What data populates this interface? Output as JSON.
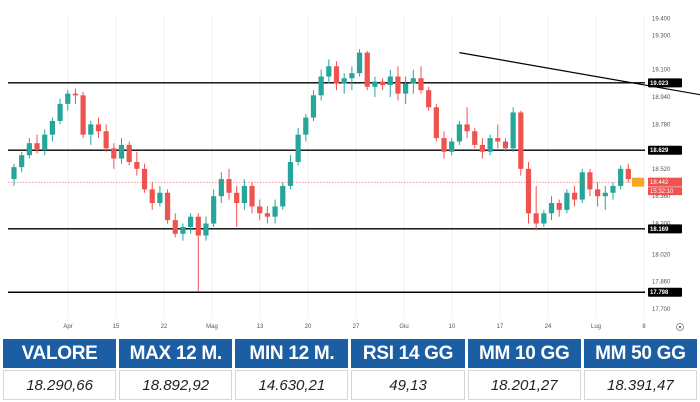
{
  "chart_data": {
    "type": "candlestick",
    "title": "",
    "xlabel": "",
    "ylabel": "",
    "ylim": [
      17.7,
      19.42
    ],
    "y_ticks": [
      "19.400",
      "19.300",
      "19.100",
      "18.940",
      "18.780",
      "18.629",
      "18.520",
      "18.360",
      "18.200",
      "18.020",
      "17.860",
      "17.700"
    ],
    "x_ticks": [
      "Apr",
      "15",
      "22",
      "Mag",
      "13",
      "20",
      "27",
      "Giu",
      "10",
      "17",
      "24",
      "Lug",
      "8"
    ],
    "levels": [
      {
        "value": 19.023,
        "label": "19.023"
      },
      {
        "value": 18.629,
        "label": "18.629"
      },
      {
        "value": 18.169,
        "label": "18.169"
      },
      {
        "value": 17.798,
        "label": "17.798"
      }
    ],
    "current_price": {
      "value": 18.442,
      "label": "18.442",
      "secondary": "18.442",
      "time": "15:32:10"
    },
    "trendline": {
      "start": {
        "index": 58,
        "value": 19.2
      },
      "end": {
        "index": 114,
        "value": 18.76
      }
    },
    "colors": {
      "up": "#26a69a",
      "down": "#ef5350",
      "level_line": "#000000",
      "trendline": "#000000",
      "current": "#ef5350"
    },
    "candles": [
      [
        18.46,
        18.55,
        18.42,
        18.53
      ],
      [
        18.53,
        18.62,
        18.5,
        18.6
      ],
      [
        18.6,
        18.7,
        18.58,
        18.67
      ],
      [
        18.67,
        18.72,
        18.61,
        18.63
      ],
      [
        18.63,
        18.75,
        18.6,
        18.72
      ],
      [
        18.72,
        18.82,
        18.68,
        18.8
      ],
      [
        18.8,
        18.93,
        18.78,
        18.9
      ],
      [
        18.9,
        18.98,
        18.86,
        18.96
      ],
      [
        18.96,
        18.99,
        18.9,
        18.95
      ],
      [
        18.95,
        18.97,
        18.7,
        18.72
      ],
      [
        18.72,
        18.8,
        18.66,
        18.78
      ],
      [
        18.78,
        18.82,
        18.7,
        18.74
      ],
      [
        18.74,
        18.78,
        18.62,
        18.64
      ],
      [
        18.64,
        18.67,
        18.52,
        18.58
      ],
      [
        18.58,
        18.7,
        18.55,
        18.66
      ],
      [
        18.66,
        18.68,
        18.54,
        18.56
      ],
      [
        18.56,
        18.62,
        18.48,
        18.52
      ],
      [
        18.52,
        18.55,
        18.38,
        18.4
      ],
      [
        18.4,
        18.44,
        18.28,
        18.32
      ],
      [
        18.32,
        18.42,
        18.3,
        18.38
      ],
      [
        18.38,
        18.4,
        18.2,
        18.22
      ],
      [
        18.22,
        18.26,
        18.12,
        18.14
      ],
      [
        18.14,
        18.2,
        18.1,
        18.18
      ],
      [
        18.18,
        18.26,
        18.14,
        18.24
      ],
      [
        18.24,
        18.26,
        17.8,
        18.13
      ],
      [
        18.13,
        18.24,
        18.1,
        18.2
      ],
      [
        18.2,
        18.4,
        18.18,
        18.36
      ],
      [
        18.36,
        18.5,
        18.32,
        18.46
      ],
      [
        18.46,
        18.52,
        18.34,
        18.38
      ],
      [
        18.38,
        18.42,
        18.18,
        18.32
      ],
      [
        18.32,
        18.46,
        18.28,
        18.42
      ],
      [
        18.42,
        18.44,
        18.26,
        18.3
      ],
      [
        18.3,
        18.34,
        18.22,
        18.26
      ],
      [
        18.26,
        18.3,
        18.2,
        18.24
      ],
      [
        18.24,
        18.34,
        18.2,
        18.3
      ],
      [
        18.3,
        18.44,
        18.28,
        18.42
      ],
      [
        18.42,
        18.6,
        18.4,
        18.56
      ],
      [
        18.56,
        18.76,
        18.54,
        18.72
      ],
      [
        18.72,
        18.84,
        18.68,
        18.82
      ],
      [
        18.82,
        18.98,
        18.8,
        18.95
      ],
      [
        18.95,
        19.1,
        18.92,
        19.06
      ],
      [
        19.06,
        19.16,
        19.02,
        19.12
      ],
      [
        19.12,
        19.15,
        18.98,
        19.02
      ],
      [
        19.02,
        19.08,
        18.96,
        19.05
      ],
      [
        19.05,
        19.12,
        18.98,
        19.08
      ],
      [
        19.08,
        19.22,
        19.06,
        19.2
      ],
      [
        19.2,
        19.21,
        18.98,
        19.0
      ],
      [
        19.0,
        19.06,
        18.94,
        19.03
      ],
      [
        19.03,
        19.05,
        18.98,
        19.01
      ],
      [
        19.01,
        19.1,
        18.94,
        19.06
      ],
      [
        19.06,
        19.12,
        18.92,
        18.96
      ],
      [
        18.96,
        19.06,
        18.9,
        19.02
      ],
      [
        19.02,
        19.1,
        18.96,
        19.05
      ],
      [
        19.05,
        19.12,
        18.96,
        18.98
      ],
      [
        18.98,
        19.0,
        18.86,
        18.88
      ],
      [
        18.88,
        18.9,
        18.68,
        18.7
      ],
      [
        18.7,
        18.74,
        18.58,
        18.62
      ],
      [
        18.62,
        18.7,
        18.6,
        18.68
      ],
      [
        18.68,
        18.8,
        18.66,
        18.78
      ],
      [
        18.78,
        18.88,
        18.7,
        18.74
      ],
      [
        18.74,
        18.76,
        18.64,
        18.66
      ],
      [
        18.66,
        18.7,
        18.58,
        18.62
      ],
      [
        18.62,
        18.72,
        18.6,
        18.7
      ],
      [
        18.7,
        18.78,
        18.64,
        18.68
      ],
      [
        18.68,
        18.7,
        18.62,
        18.64
      ],
      [
        18.64,
        18.88,
        18.62,
        18.85
      ],
      [
        18.85,
        18.86,
        18.48,
        18.52
      ],
      [
        18.52,
        18.56,
        18.2,
        18.26
      ],
      [
        18.26,
        18.42,
        18.16,
        18.2
      ],
      [
        18.2,
        18.28,
        18.18,
        18.26
      ],
      [
        18.26,
        18.36,
        18.22,
        18.32
      ],
      [
        18.32,
        18.34,
        18.24,
        18.28
      ],
      [
        18.28,
        18.4,
        18.26,
        18.38
      ],
      [
        18.38,
        18.42,
        18.3,
        18.34
      ],
      [
        18.34,
        18.52,
        18.32,
        18.5
      ],
      [
        18.5,
        18.52,
        18.36,
        18.4
      ],
      [
        18.4,
        18.44,
        18.3,
        18.36
      ],
      [
        18.36,
        18.42,
        18.28,
        18.38
      ],
      [
        18.38,
        18.44,
        18.34,
        18.42
      ],
      [
        18.42,
        18.54,
        18.4,
        18.52
      ],
      [
        18.52,
        18.55,
        18.44,
        18.46
      ]
    ]
  },
  "stats": {
    "headers": [
      "VALORE",
      "MAX 12 M.",
      "MIN 12 M.",
      "RSI 14 GG",
      "MM 10 GG",
      "MM 50 GG"
    ],
    "values": [
      "18.290,66",
      "18.892,92",
      "14.630,21",
      "49,13",
      "18.201,27",
      "18.391,47"
    ]
  }
}
